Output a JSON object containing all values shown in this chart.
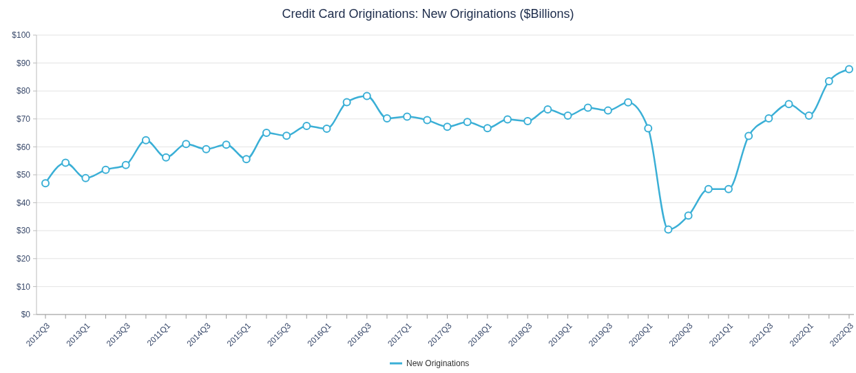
{
  "chart_data": {
    "type": "line",
    "title": "Credit Card Originations: New Originations ($Billions)",
    "categories": [
      "2012Q3",
      null,
      "2013Q1",
      null,
      "2013Q3",
      null,
      "2011Q1",
      null,
      "2014Q3",
      null,
      "2015Q1",
      null,
      "2015Q3",
      null,
      "2016Q1",
      null,
      "2016Q3",
      null,
      "2017Q1",
      null,
      "2017Q3",
      null,
      "2018Q1",
      null,
      "2018Q3",
      null,
      "2019Q1",
      null,
      "2019Q3",
      null,
      "2020Q1",
      null,
      "2020Q3",
      null,
      "2021Q1",
      null,
      "2021Q3",
      null,
      "2022Q1",
      null,
      "2022Q3"
    ],
    "series": [
      {
        "name": "New Originations",
        "color": "#3aafd6",
        "values": [
          47,
          54.3,
          48.8,
          51.8,
          53.5,
          62.4,
          56.2,
          61,
          59.2,
          60.8,
          55.6,
          65,
          64,
          67.5,
          66.5,
          76,
          78.2,
          70.2,
          70.8,
          69.6,
          67.2,
          68.9,
          66.7,
          69.8,
          69.2,
          73.4,
          71.2,
          74,
          73,
          75.9,
          66.6,
          30.4,
          35.4,
          44.9,
          44.9,
          63.9,
          70.2,
          75.3,
          71.2,
          83.5,
          87.8
        ]
      }
    ],
    "ylim": [
      0,
      100
    ],
    "yticks": [
      {
        "value": 0,
        "label": "$0"
      },
      {
        "value": 10,
        "label": "$10"
      },
      {
        "value": 20,
        "label": "$20"
      },
      {
        "value": 30,
        "label": "$30"
      },
      {
        "value": 40,
        "label": "$40"
      },
      {
        "value": 50,
        "label": "$50"
      },
      {
        "value": 60,
        "label": "$60"
      },
      {
        "value": 70,
        "label": "$70"
      },
      {
        "value": 80,
        "label": "$80"
      },
      {
        "value": 90,
        "label": "$90"
      },
      {
        "value": 100,
        "label": "$100"
      }
    ],
    "grid": "y",
    "legend": "bottom",
    "marker": "circle",
    "line_style": "solid"
  }
}
